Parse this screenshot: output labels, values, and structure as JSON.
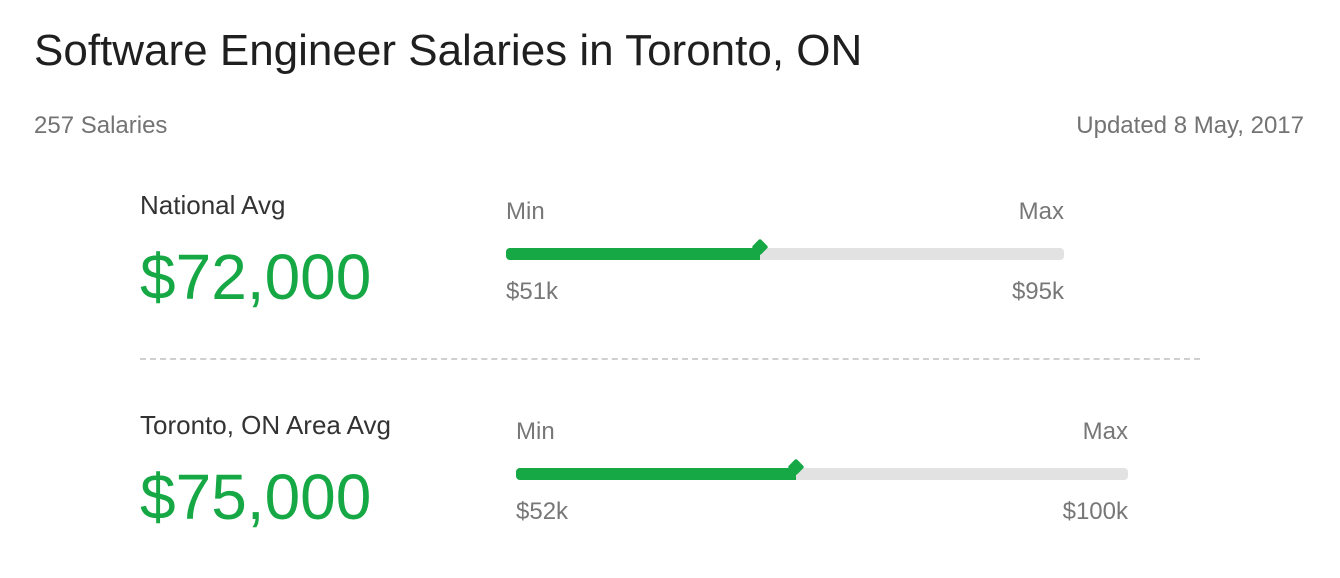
{
  "header": {
    "title": "Software Engineer Salaries in Toronto, ON",
    "salary_count": "257 Salaries",
    "updated": "Updated 8 May, 2017"
  },
  "rows": [
    {
      "label": "National Avg",
      "value": "$72,000",
      "min_label": "Min",
      "max_label": "Max",
      "min_value": "$51k",
      "max_value": "$95k",
      "position_fraction": 0.455
    },
    {
      "label": "Toronto, ON Area Avg",
      "value": "$75,000",
      "min_label": "Min",
      "max_label": "Max",
      "min_value": "$52k",
      "max_value": "$100k",
      "position_fraction": 0.458
    }
  ],
  "colors": {
    "accent": "#15a844",
    "track": "#e2e2e2"
  }
}
